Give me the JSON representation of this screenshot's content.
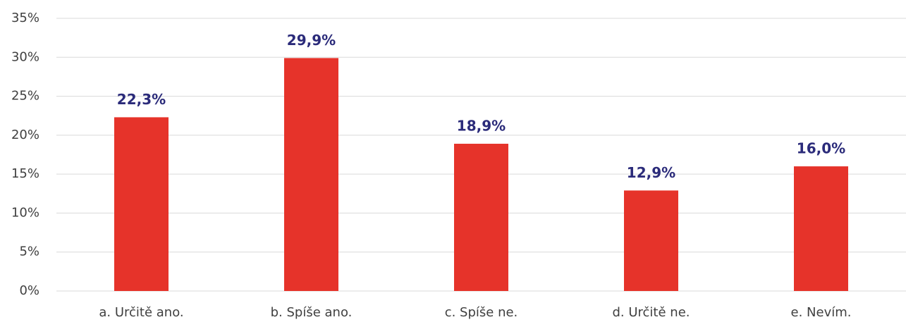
{
  "chart_data": {
    "type": "bar",
    "categories": [
      "a. Určitě ano.",
      "b. Spíše ano.",
      "c. Spíše ne.",
      "d. Určitě ne.",
      "e. Nevím."
    ],
    "values": [
      22.3,
      29.9,
      18.9,
      12.9,
      16.0
    ],
    "value_labels": [
      "22,3%",
      "29,9%",
      "18,9%",
      "12,9%",
      "16,0%"
    ],
    "color": "#e6332a",
    "ylim": [
      0,
      35
    ],
    "yticks": [
      {
        "value": 0,
        "label": "0%"
      },
      {
        "value": 5,
        "label": "5%"
      },
      {
        "value": 10,
        "label": "10%"
      },
      {
        "value": 15,
        "label": "15%"
      },
      {
        "value": 20,
        "label": "20%"
      },
      {
        "value": 25,
        "label": "25%"
      },
      {
        "value": 30,
        "label": "30%"
      },
      {
        "value": 35,
        "label": "35%"
      }
    ],
    "grid": true
  }
}
